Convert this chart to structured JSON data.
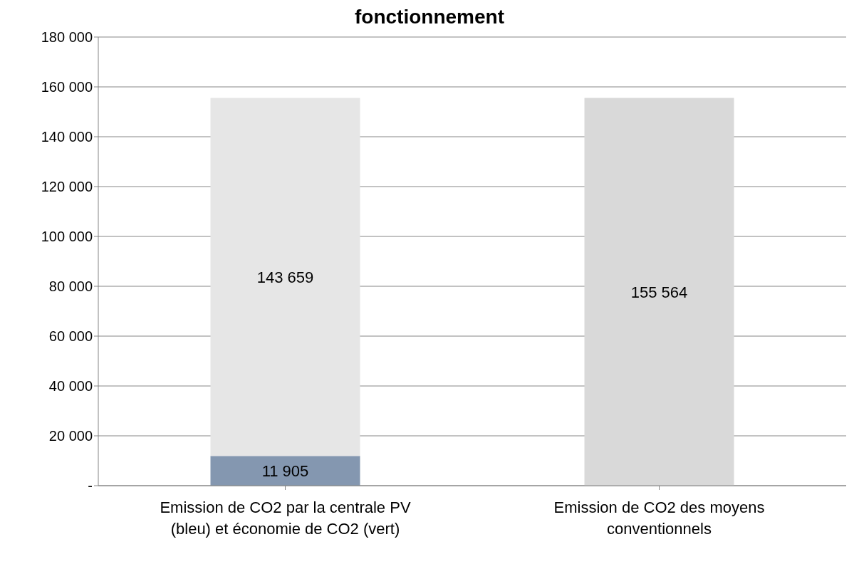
{
  "chart_data": {
    "type": "bar",
    "title": "fonctionnement",
    "stacked": true,
    "grid": "y",
    "categories": [
      "Emission de CO2 par la centrale PV (bleu) et économie de CO2 (vert)",
      "Emission de CO2 des moyens conventionnels"
    ],
    "series": [
      {
        "color": "#8497b0",
        "values": [
          11905,
          null
        ],
        "value_labels": [
          "11 905",
          null
        ]
      },
      {
        "color": "#e6e6e6",
        "values": [
          143659,
          null
        ],
        "value_labels": [
          "143 659",
          null
        ]
      },
      {
        "color": "#d9d9d9",
        "values": [
          null,
          155564
        ],
        "value_labels": [
          null,
          "155 564"
        ]
      }
    ],
    "ylim": [
      0,
      180000
    ],
    "yticks": [
      {
        "value": 0,
        "label": "-"
      },
      {
        "value": 20000,
        "label": "20 000"
      },
      {
        "value": 40000,
        "label": "40 000"
      },
      {
        "value": 60000,
        "label": "60 000"
      },
      {
        "value": 80000,
        "label": "80 000"
      },
      {
        "value": 100000,
        "label": "100 000"
      },
      {
        "value": 120000,
        "label": "120 000"
      },
      {
        "value": 140000,
        "label": "140 000"
      },
      {
        "value": 160000,
        "label": "160 000"
      },
      {
        "value": 180000,
        "label": "180 000"
      }
    ]
  }
}
